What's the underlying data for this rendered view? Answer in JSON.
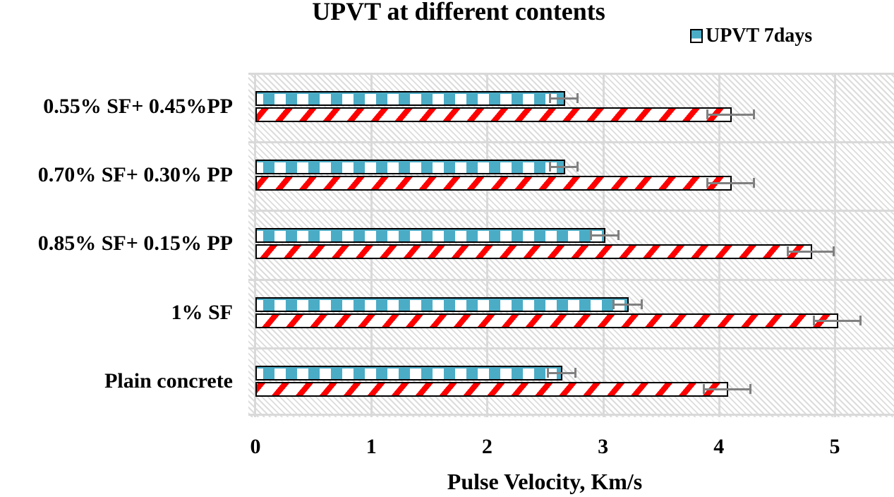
{
  "chart_data": {
    "type": "bar",
    "orientation": "horizontal",
    "title": "UPVT at different contents",
    "xlabel": "Pulse Velocity, Km/s",
    "ylabel": "",
    "xlim": [
      0,
      5.5
    ],
    "xticks": [
      "0",
      "1",
      "2",
      "3",
      "4",
      "5"
    ],
    "grid": true,
    "legend_position": "top-right",
    "categories": [
      "0.55% SF+ 0.45%PP",
      "0.70% SF+ 0.30% PP",
      "0.85% SF+ 0.15% PP",
      "1% SF",
      "Plain concrete"
    ],
    "series": [
      {
        "name": "UPVT 7days",
        "color": "#4BACC6",
        "pattern": "checker",
        "values": [
          2.66,
          2.66,
          3.01,
          3.21,
          2.64
        ],
        "error": [
          0.12,
          0.12,
          0.12,
          0.12,
          0.12
        ]
      },
      {
        "name": "",
        "color": "#FF0000",
        "pattern": "diagonal-stripes",
        "values": [
          4.1,
          4.1,
          4.79,
          5.02,
          4.07
        ],
        "error": [
          0.2,
          0.2,
          0.2,
          0.2,
          0.2
        ]
      }
    ]
  },
  "legend": {
    "items": [
      {
        "label": "UPVT 7days",
        "color": "#4BACC6"
      }
    ]
  }
}
